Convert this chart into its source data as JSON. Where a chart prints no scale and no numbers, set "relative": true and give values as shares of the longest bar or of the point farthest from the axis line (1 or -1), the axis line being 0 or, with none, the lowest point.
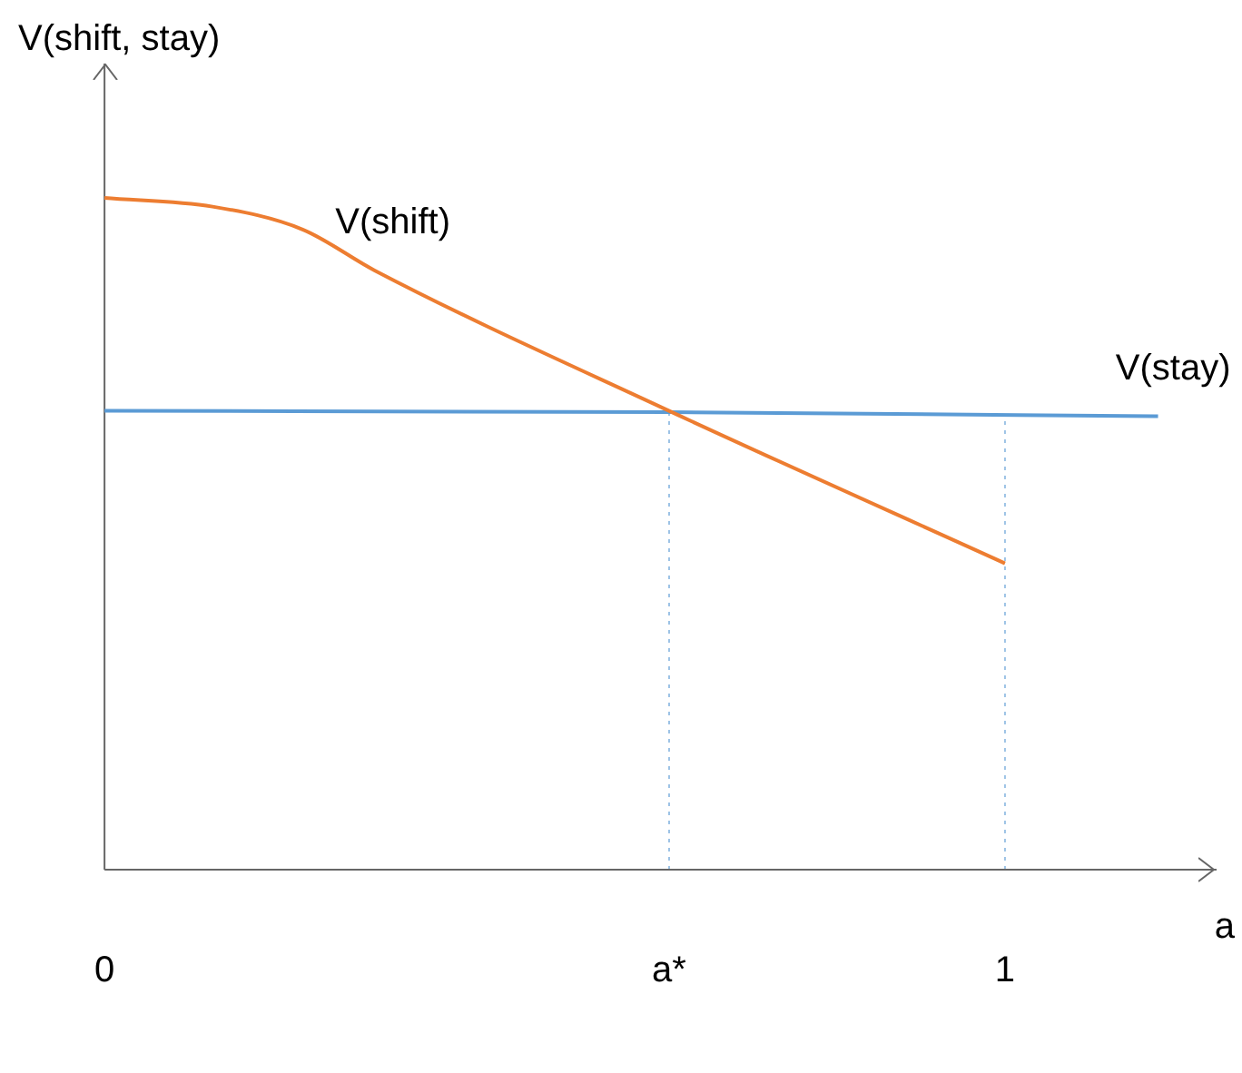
{
  "chart_data": {
    "type": "line",
    "relative": true,
    "xlabel": "a",
    "ylabel": "V(shift, stay)",
    "xlim": [
      0,
      1.235
    ],
    "xticks": [
      0,
      {
        "value": 0.627,
        "label": "a*"
      },
      1
    ],
    "series": [
      {
        "name": "V(shift)",
        "color": "#ed7d31",
        "x": [
          0,
          0.12,
          0.22,
          0.3,
          0.627,
          1
        ],
        "values": [
          1,
          0.987,
          0.953,
          0.892,
          0.683,
          0.456
        ]
      },
      {
        "name": "V(stay)",
        "color": "#5b9bd5",
        "x": [
          0,
          0.627,
          1.17
        ],
        "values": [
          0.683,
          0.681,
          0.675
        ]
      }
    ],
    "ref_lines": [
      {
        "axis": "x",
        "value": 0.627,
        "color": "#9dc3e6",
        "line_style": "dotted"
      },
      {
        "axis": "x",
        "value": 1,
        "color": "#9dc3e6",
        "line_style": "dotted"
      }
    ],
    "grid": false,
    "legend": false,
    "marker": "none",
    "line_style": "solid"
  }
}
